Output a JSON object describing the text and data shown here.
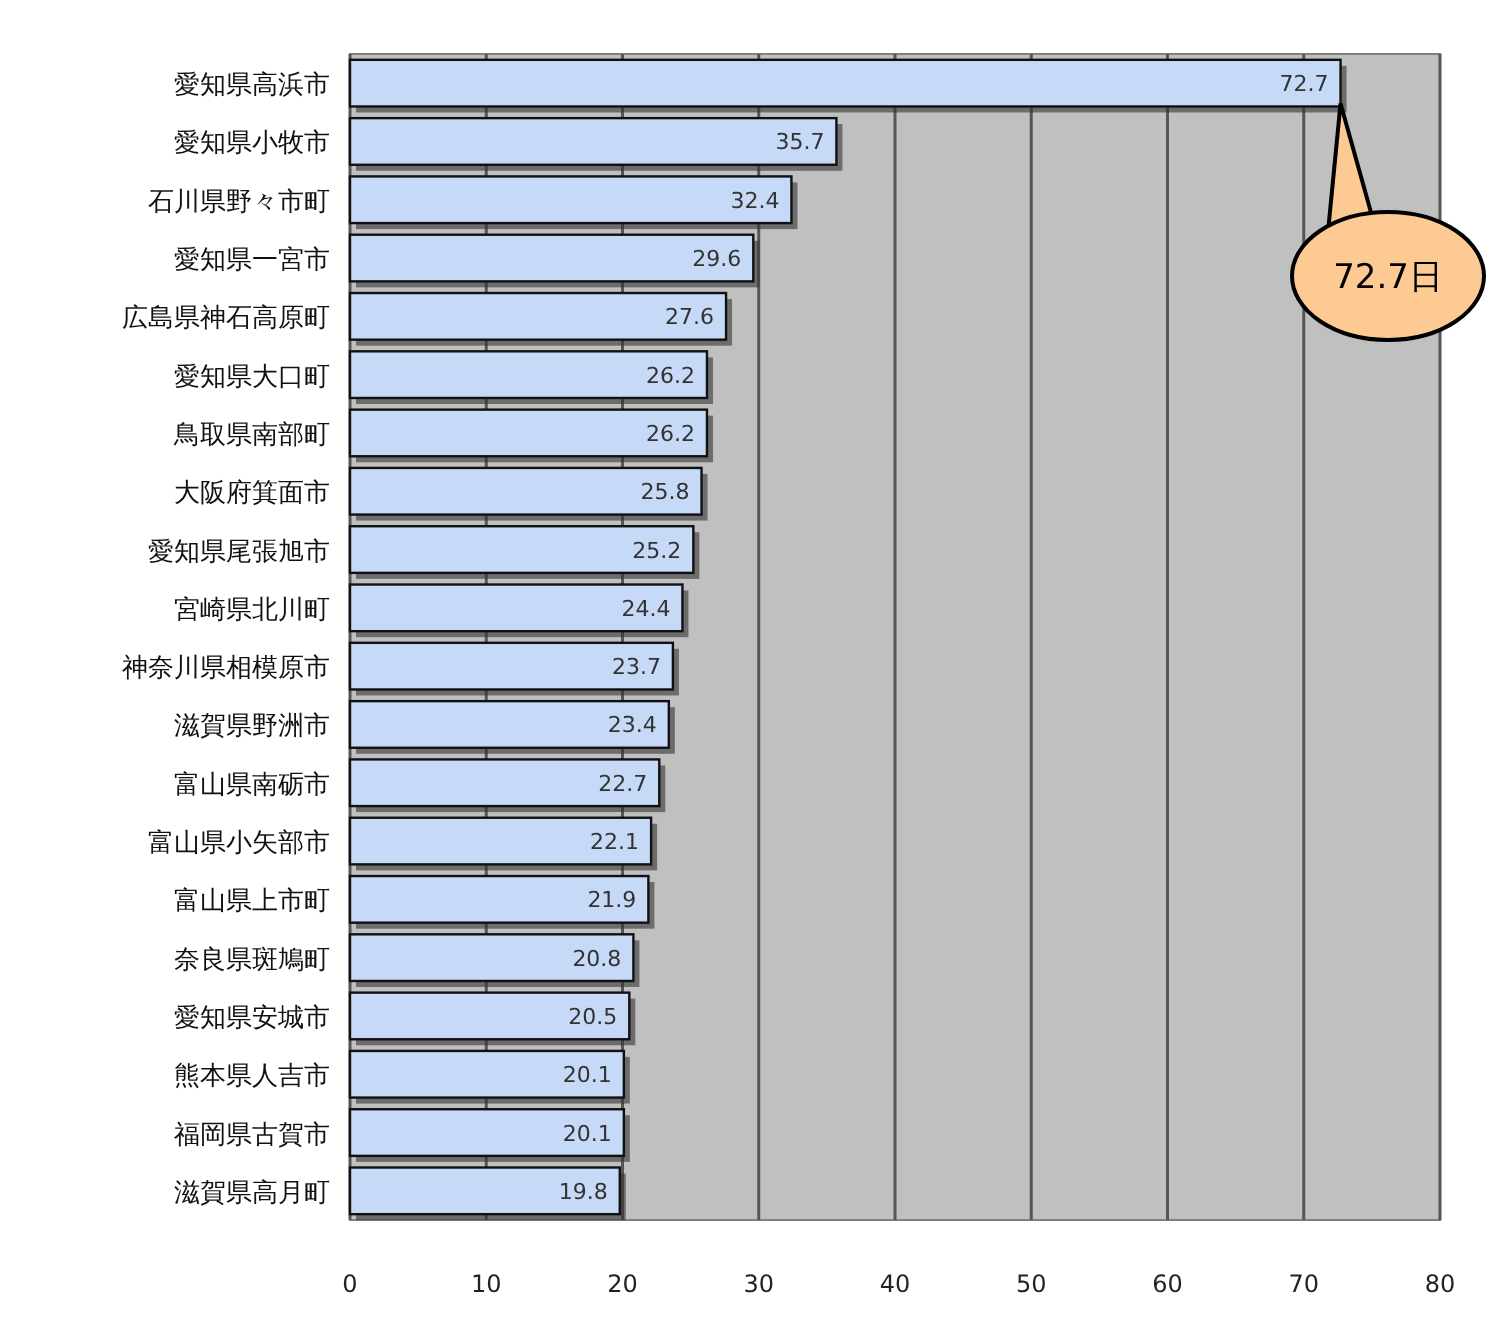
{
  "chart_data": {
    "type": "bar",
    "orientation": "horizontal",
    "categories": [
      "愛知県高浜市",
      "愛知県小牧市",
      "石川県野々市町",
      "愛知県一宮市",
      "広島県神石高原町",
      "愛知県大口町",
      "鳥取県南部町",
      "大阪府箕面市",
      "愛知県尾張旭市",
      "宮崎県北川町",
      "神奈川県相模原市",
      "滋賀県野洲市",
      "富山県南砺市",
      "富山県小矢部市",
      "富山県上市町",
      "奈良県斑鳩町",
      "愛知県安城市",
      "熊本県人吉市",
      "福岡県古賀市",
      "滋賀県高月町"
    ],
    "values": [
      72.7,
      35.7,
      32.4,
      29.6,
      27.6,
      26.2,
      26.2,
      25.8,
      25.2,
      24.4,
      23.7,
      23.4,
      22.7,
      22.1,
      21.9,
      20.8,
      20.5,
      20.1,
      20.1,
      19.8
    ],
    "color": "#c6d9f7",
    "xlim": [
      0,
      80
    ],
    "xticks": [
      0,
      10,
      20,
      30,
      40,
      50,
      60,
      70,
      80
    ],
    "grid": "x",
    "data_labels": true,
    "annotations": [
      {
        "text": "72.7日",
        "x": 72.7,
        "y": "愛知県高浜市"
      }
    ]
  }
}
